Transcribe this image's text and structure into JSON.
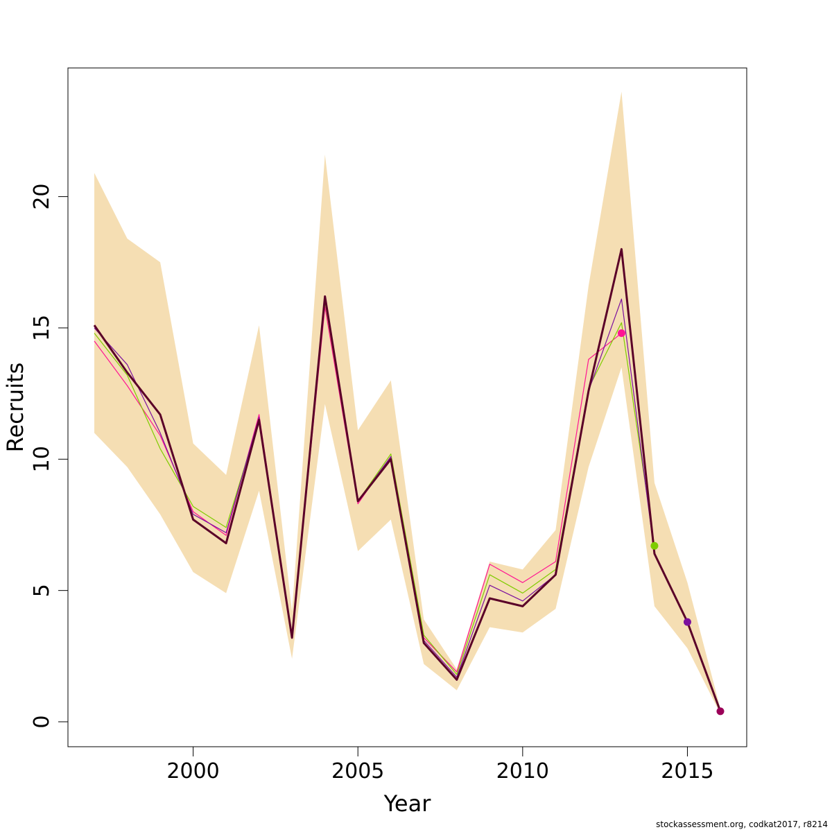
{
  "chart_data": {
    "type": "line",
    "title": "",
    "xlabel": "Year",
    "ylabel": "Recruits",
    "xlim": [
      1996.2,
      2016.8
    ],
    "ylim": [
      -0.95,
      24.9
    ],
    "xticks": [
      2000,
      2005,
      2010,
      2015
    ],
    "yticks": [
      0,
      5,
      10,
      15,
      20
    ],
    "grid": false,
    "band": {
      "color": "#F5DEB3",
      "x": [
        1997,
        1998,
        1999,
        2000,
        2001,
        2002,
        2003,
        2004,
        2005,
        2006,
        2007,
        2008,
        2009,
        2010,
        2011,
        2012,
        2013,
        2014,
        2015,
        2016
      ],
      "upper": [
        20.9,
        18.4,
        17.5,
        10.6,
        9.4,
        15.1,
        4.2,
        21.6,
        11.1,
        13.0,
        3.9,
        2.0,
        6.1,
        5.8,
        7.3,
        16.6,
        24.0,
        9.1,
        5.3,
        0.5
      ],
      "lower": [
        11.0,
        9.7,
        7.9,
        5.7,
        4.9,
        8.8,
        2.4,
        12.1,
        6.5,
        7.7,
        2.2,
        1.2,
        3.6,
        3.4,
        4.3,
        9.7,
        13.5,
        4.4,
        2.8,
        0.3
      ]
    },
    "series": [
      {
        "color": "#FF1493",
        "width": 1.2,
        "x": [
          1997,
          1998,
          1999,
          2000,
          2001,
          2002,
          2003,
          2004,
          2005,
          2006,
          2007,
          2008,
          2009,
          2010,
          2011,
          2012,
          2013
        ],
        "values": [
          14.5,
          12.8,
          10.9,
          8.0,
          7.1,
          11.7,
          3.2,
          15.8,
          8.3,
          10.1,
          3.2,
          1.9,
          6.0,
          5.3,
          6.1,
          13.8,
          14.8
        ],
        "end_marker": true
      },
      {
        "color": "#7FCC00",
        "width": 1.2,
        "x": [
          1997,
          1998,
          1999,
          2000,
          2001,
          2002,
          2003,
          2004,
          2005,
          2006,
          2007,
          2008,
          2009,
          2010,
          2011,
          2012,
          2013,
          2014
        ],
        "values": [
          14.8,
          13.2,
          10.4,
          8.2,
          7.4,
          11.5,
          3.2,
          16.0,
          8.4,
          10.2,
          3.3,
          1.8,
          5.6,
          4.9,
          5.8,
          12.7,
          15.2,
          6.7
        ],
        "end_marker": true
      },
      {
        "color": "#7B0F9E",
        "width": 1.2,
        "x": [
          1997,
          1998,
          1999,
          2000,
          2001,
          2002,
          2003,
          2004,
          2005,
          2006,
          2007,
          2008,
          2009,
          2010,
          2011,
          2012,
          2013,
          2014,
          2015
        ],
        "values": [
          15.0,
          13.6,
          11.0,
          7.9,
          7.2,
          11.6,
          3.2,
          16.1,
          8.4,
          10.1,
          3.1,
          1.7,
          5.2,
          4.6,
          5.6,
          12.6,
          16.1,
          6.4,
          3.8
        ],
        "end_marker": true
      },
      {
        "color": "#9B0058",
        "width": 1.2,
        "x": [
          1997,
          1998,
          1999,
          2000,
          2001,
          2002,
          2003,
          2004,
          2005,
          2006,
          2007,
          2008,
          2009,
          2010,
          2011,
          2012,
          2013,
          2014,
          2015,
          2016
        ],
        "values": [
          15.1,
          13.3,
          11.7,
          7.7,
          6.8,
          11.5,
          3.2,
          16.2,
          8.4,
          10.0,
          3.0,
          1.6,
          4.7,
          4.4,
          5.6,
          12.6,
          18.0,
          6.4,
          3.8,
          0.4
        ],
        "end_marker": true
      },
      {
        "color": "#5A0028",
        "width": 3,
        "x": [
          1997,
          1998,
          1999,
          2000,
          2001,
          2002,
          2003,
          2004,
          2005,
          2006,
          2007,
          2008,
          2009,
          2010,
          2011,
          2012,
          2013,
          2014,
          2015,
          2016
        ],
        "values": [
          15.1,
          13.3,
          11.7,
          7.7,
          6.8,
          11.5,
          3.2,
          16.2,
          8.4,
          10.0,
          3.0,
          1.6,
          4.7,
          4.4,
          5.6,
          12.6,
          18.0,
          6.4,
          3.8,
          0.4
        ],
        "end_marker": false
      }
    ]
  },
  "footer": {
    "text": "stockassessment.org, codkat2017, r8214"
  }
}
